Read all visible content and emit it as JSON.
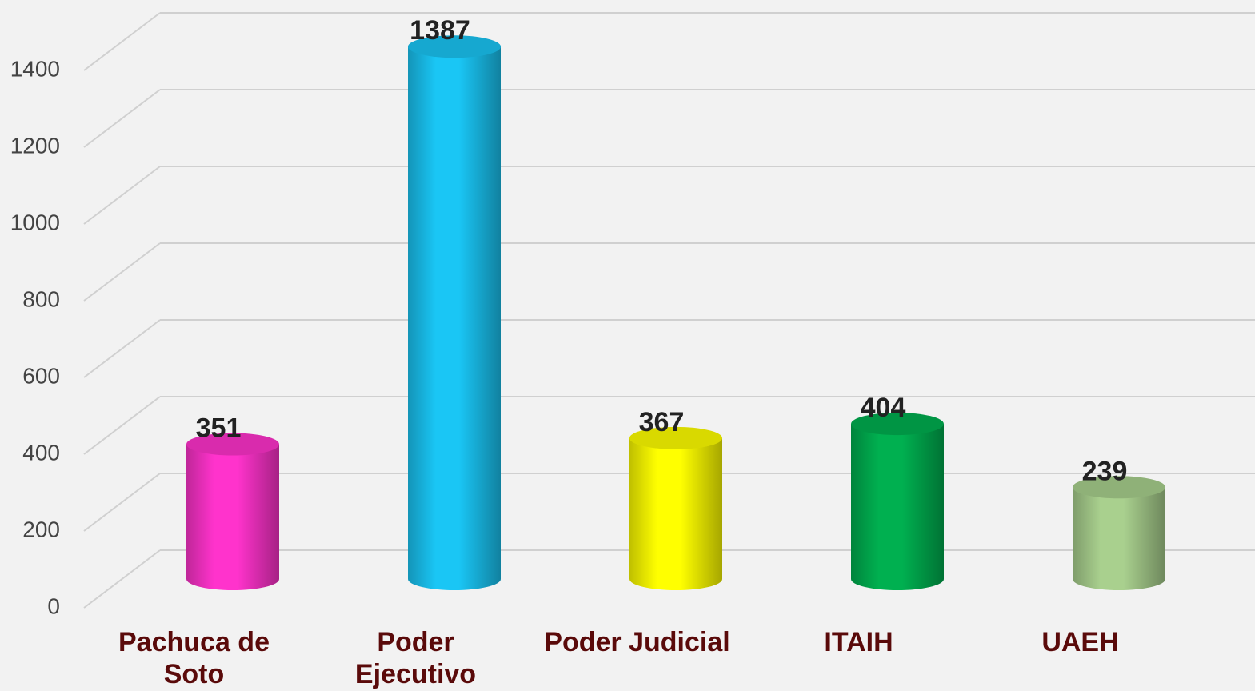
{
  "chart_data": {
    "type": "bar3d-cylinder",
    "categories": [
      "Pachuca de\nSoto",
      "Poder\nEjecutivo",
      "Poder Judicial",
      "ITAIH",
      "UAEH"
    ],
    "values": [
      351,
      1387,
      367,
      404,
      239
    ],
    "colors": [
      "#ff33cc",
      "#1ac6f5",
      "#ffff00",
      "#00b050",
      "#a9d08e"
    ],
    "ylim": [
      0,
      1400
    ],
    "yticks": [
      0,
      200,
      400,
      600,
      800,
      1000,
      1200,
      1400
    ],
    "grid": true
  }
}
